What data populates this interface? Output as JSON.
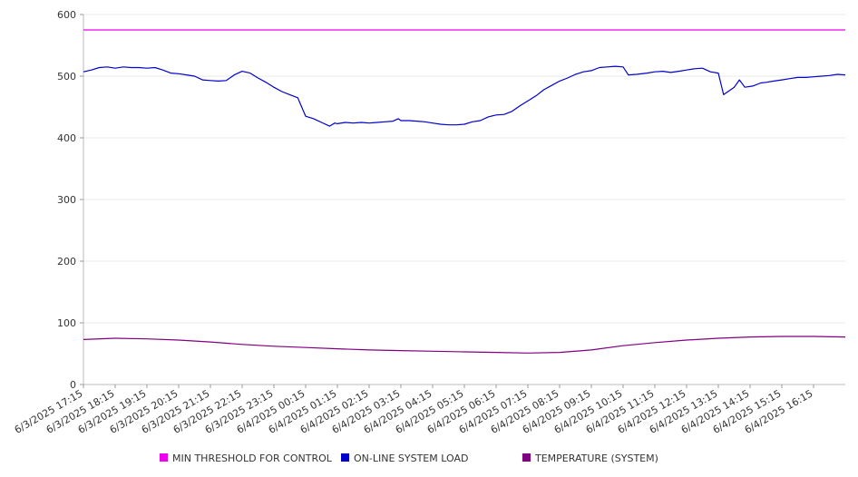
{
  "chart_data": {
    "type": "line",
    "title": "",
    "xlabel": "",
    "ylabel": "",
    "ylim": [
      0,
      600
    ],
    "yticks": [
      0,
      100,
      200,
      300,
      400,
      500,
      600
    ],
    "grid": true,
    "legend_position": "bottom",
    "x_tick_labels": [
      "6/3/2025 17:15",
      "6/3/2025 18:15",
      "6/3/2025 19:15",
      "6/3/2025 20:15",
      "6/3/2025 21:15",
      "6/3/2025 22:15",
      "6/3/2025 23:15",
      "6/4/2025 00:15",
      "6/4/2025 01:15",
      "6/4/2025 02:15",
      "6/4/2025 03:15",
      "6/4/2025 04:15",
      "6/4/2025 05:15",
      "6/4/2025 06:15",
      "6/4/2025 07:15",
      "6/4/2025 08:15",
      "6/4/2025 09:15",
      "6/4/2025 10:15",
      "6/4/2025 11:15",
      "6/4/2025 12:15",
      "6/4/2025 13:15",
      "6/4/2025 14:15",
      "6/4/2025 15:15",
      "6/4/2025 16:15"
    ],
    "x_range": [
      "6/3/2025 17:15",
      "6/4/2025 17:15"
    ],
    "series": [
      {
        "name": "MIN THRESHOLD FOR CONTROL",
        "color": "#ee00ee",
        "points": [
          [
            "6/3/2025 17:15",
            575
          ],
          [
            "6/4/2025 17:15",
            575
          ]
        ]
      },
      {
        "name": "ON-LINE SYSTEM LOAD",
        "color": "#0000cc",
        "points": [
          [
            "6/3/2025 17:15",
            507
          ],
          [
            "6/3/2025 17:30",
            510
          ],
          [
            "6/3/2025 17:45",
            514
          ],
          [
            "6/3/2025 18:00",
            515
          ],
          [
            "6/3/2025 18:15",
            513
          ],
          [
            "6/3/2025 18:30",
            515
          ],
          [
            "6/3/2025 18:45",
            514
          ],
          [
            "6/3/2025 19:00",
            514
          ],
          [
            "6/3/2025 19:15",
            513
          ],
          [
            "6/3/2025 19:30",
            514
          ],
          [
            "6/3/2025 19:45",
            510
          ],
          [
            "6/3/2025 20:00",
            505
          ],
          [
            "6/3/2025 20:15",
            504
          ],
          [
            "6/3/2025 20:30",
            502
          ],
          [
            "6/3/2025 20:45",
            500
          ],
          [
            "6/3/2025 21:00",
            494
          ],
          [
            "6/3/2025 21:15",
            493
          ],
          [
            "6/3/2025 21:30",
            492
          ],
          [
            "6/3/2025 21:45",
            493
          ],
          [
            "6/3/2025 22:00",
            502
          ],
          [
            "6/3/2025 22:15",
            508
          ],
          [
            "6/3/2025 22:30",
            505
          ],
          [
            "6/3/2025 22:45",
            497
          ],
          [
            "6/3/2025 23:00",
            490
          ],
          [
            "6/3/2025 23:15",
            482
          ],
          [
            "6/3/2025 23:30",
            475
          ],
          [
            "6/3/2025 23:45",
            470
          ],
          [
            "6/4/2025 00:00",
            465
          ],
          [
            "6/4/2025 00:05",
            455
          ],
          [
            "6/4/2025 00:15",
            435
          ],
          [
            "6/4/2025 00:30",
            431
          ],
          [
            "6/4/2025 00:45",
            425
          ],
          [
            "6/4/2025 01:00",
            419
          ],
          [
            "6/4/2025 01:10",
            424
          ],
          [
            "6/4/2025 01:15",
            423
          ],
          [
            "6/4/2025 01:30",
            425
          ],
          [
            "6/4/2025 01:45",
            424
          ],
          [
            "6/4/2025 02:00",
            425
          ],
          [
            "6/4/2025 02:15",
            424
          ],
          [
            "6/4/2025 02:30",
            425
          ],
          [
            "6/4/2025 02:45",
            426
          ],
          [
            "6/4/2025 03:00",
            427
          ],
          [
            "6/4/2025 03:10",
            431
          ],
          [
            "6/4/2025 03:15",
            428
          ],
          [
            "6/4/2025 03:30",
            428
          ],
          [
            "6/4/2025 03:45",
            427
          ],
          [
            "6/4/2025 04:00",
            426
          ],
          [
            "6/4/2025 04:15",
            424
          ],
          [
            "6/4/2025 04:30",
            422
          ],
          [
            "6/4/2025 04:45",
            421
          ],
          [
            "6/4/2025 05:00",
            421
          ],
          [
            "6/4/2025 05:15",
            422
          ],
          [
            "6/4/2025 05:30",
            426
          ],
          [
            "6/4/2025 05:45",
            428
          ],
          [
            "6/4/2025 06:00",
            434
          ],
          [
            "6/4/2025 06:15",
            437
          ],
          [
            "6/4/2025 06:30",
            438
          ],
          [
            "6/4/2025 06:45",
            443
          ],
          [
            "6/4/2025 07:00",
            452
          ],
          [
            "6/4/2025 07:15",
            460
          ],
          [
            "6/4/2025 07:30",
            468
          ],
          [
            "6/4/2025 07:45",
            478
          ],
          [
            "6/4/2025 08:00",
            485
          ],
          [
            "6/4/2025 08:15",
            492
          ],
          [
            "6/4/2025 08:30",
            497
          ],
          [
            "6/4/2025 08:45",
            503
          ],
          [
            "6/4/2025 09:00",
            507
          ],
          [
            "6/4/2025 09:15",
            509
          ],
          [
            "6/4/2025 09:30",
            514
          ],
          [
            "6/4/2025 09:45",
            515
          ],
          [
            "6/4/2025 10:00",
            516
          ],
          [
            "6/4/2025 10:15",
            515
          ],
          [
            "6/4/2025 10:25",
            502
          ],
          [
            "6/4/2025 10:40",
            503
          ],
          [
            "6/4/2025 11:00",
            505
          ],
          [
            "6/4/2025 11:15",
            507
          ],
          [
            "6/4/2025 11:30",
            508
          ],
          [
            "6/4/2025 11:45",
            506
          ],
          [
            "6/4/2025 12:00",
            508
          ],
          [
            "6/4/2025 12:15",
            510
          ],
          [
            "6/4/2025 12:30",
            512
          ],
          [
            "6/4/2025 12:45",
            513
          ],
          [
            "6/4/2025 13:00",
            507
          ],
          [
            "6/4/2025 13:15",
            505
          ],
          [
            "6/4/2025 13:25",
            470
          ],
          [
            "6/4/2025 13:45",
            482
          ],
          [
            "6/4/2025 13:55",
            494
          ],
          [
            "6/4/2025 14:05",
            482
          ],
          [
            "6/4/2025 14:20",
            484
          ],
          [
            "6/4/2025 14:35",
            489
          ],
          [
            "6/4/2025 14:45",
            490
          ],
          [
            "6/4/2025 15:00",
            492
          ],
          [
            "6/4/2025 15:15",
            494
          ],
          [
            "6/4/2025 15:30",
            496
          ],
          [
            "6/4/2025 15:45",
            498
          ],
          [
            "6/4/2025 16:00",
            498
          ],
          [
            "6/4/2025 16:15",
            499
          ],
          [
            "6/4/2025 16:30",
            500
          ],
          [
            "6/4/2025 16:45",
            501
          ],
          [
            "6/4/2025 17:00",
            503
          ],
          [
            "6/4/2025 17:15",
            502
          ]
        ]
      },
      {
        "name": "TEMPERATURE (SYSTEM)",
        "color": "#800080",
        "points": [
          [
            "6/3/2025 17:15",
            73
          ],
          [
            "6/3/2025 18:15",
            75
          ],
          [
            "6/3/2025 19:15",
            74
          ],
          [
            "6/3/2025 20:15",
            72
          ],
          [
            "6/3/2025 21:15",
            69
          ],
          [
            "6/3/2025 22:15",
            65
          ],
          [
            "6/3/2025 23:15",
            62
          ],
          [
            "6/4/2025 00:15",
            60
          ],
          [
            "6/4/2025 01:15",
            58
          ],
          [
            "6/4/2025 02:15",
            56
          ],
          [
            "6/4/2025 03:15",
            55
          ],
          [
            "6/4/2025 04:15",
            54
          ],
          [
            "6/4/2025 05:15",
            53
          ],
          [
            "6/4/2025 06:15",
            52
          ],
          [
            "6/4/2025 07:15",
            51
          ],
          [
            "6/4/2025 08:15",
            52
          ],
          [
            "6/4/2025 09:15",
            56
          ],
          [
            "6/4/2025 10:15",
            63
          ],
          [
            "6/4/2025 11:15",
            68
          ],
          [
            "6/4/2025 12:15",
            72
          ],
          [
            "6/4/2025 13:15",
            75
          ],
          [
            "6/4/2025 14:15",
            77
          ],
          [
            "6/4/2025 15:15",
            78
          ],
          [
            "6/4/2025 16:15",
            78
          ],
          [
            "6/4/2025 17:15",
            77
          ]
        ]
      }
    ]
  }
}
